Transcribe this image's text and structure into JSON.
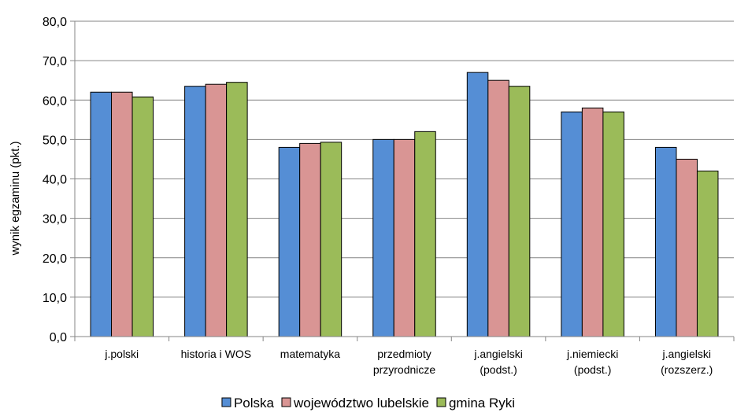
{
  "chart_data": {
    "type": "bar",
    "title": "",
    "xlabel": "",
    "ylabel": "wynik egzaminu (pkt.)",
    "ylim": [
      0,
      80
    ],
    "yticks": [
      "0,0",
      "10,0",
      "20,0",
      "30,0",
      "40,0",
      "50,0",
      "60,0",
      "70,0",
      "80,0"
    ],
    "grid": true,
    "legend_position": "bottom",
    "categories": [
      [
        "j.polski"
      ],
      [
        "historia i WOS"
      ],
      [
        "matematyka"
      ],
      [
        "przedmioty",
        "przyrodnicze"
      ],
      [
        "j.angielski",
        "(podst.)"
      ],
      [
        "j.niemiecki",
        "(podst.)"
      ],
      [
        "j.angielski",
        "(rozszerz.)"
      ]
    ],
    "series": [
      {
        "name": "Polska",
        "color": "#558ED5",
        "values": [
          62.0,
          63.5,
          48.0,
          50.0,
          67.0,
          57.0,
          48.0
        ]
      },
      {
        "name": "województwo lubelskie",
        "color": "#D99594",
        "values": [
          62.0,
          64.0,
          49.0,
          50.0,
          65.0,
          58.0,
          45.0
        ]
      },
      {
        "name": "gmina Ryki",
        "color": "#9BBB59",
        "values": [
          60.8,
          64.5,
          49.3,
          52.0,
          63.5,
          57.0,
          42.0
        ]
      }
    ]
  }
}
